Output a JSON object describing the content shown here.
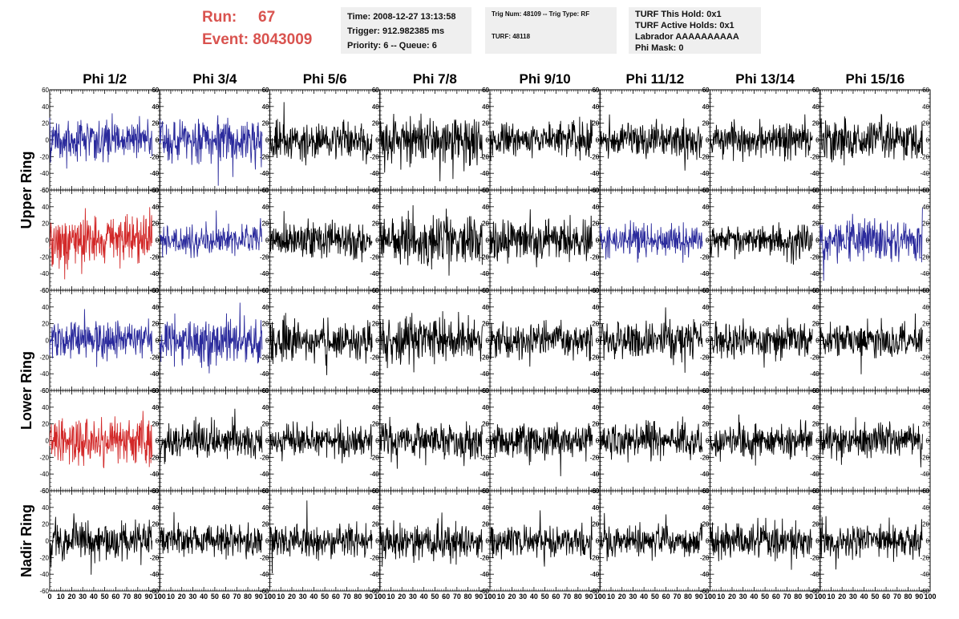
{
  "header": {
    "run_label": "Run:",
    "run_value": "67",
    "event_label": "Event:",
    "event_value": "8043009",
    "time": "Time: 2008-12-27 13:13:58",
    "trigger": "Trigger: 912.982385 ms",
    "priority": "Priority: 6 -- Queue: 6",
    "trig_num": "Trig Num: 48109 -- Trig Type: RF",
    "turf": "TURF: 48118",
    "turf_this_hold": "TURF This Hold: 0x1",
    "turf_active_holds": "TURF Active Holds: 0x1",
    "labrador": "Labrador AAAAAAAAAA",
    "phi_mask": "Phi Mask: 0"
  },
  "chart_data": {
    "type": "line",
    "columns": [
      "Phi 1/2",
      "Phi 3/4",
      "Phi 5/6",
      "Phi 7/8",
      "Phi 9/10",
      "Phi 11/12",
      "Phi 13/14",
      "Phi 15/16"
    ],
    "ring_labels": [
      {
        "text": "Upper Ring",
        "rows": [
          0,
          1
        ]
      },
      {
        "text": "Lower Ring",
        "rows": [
          2,
          3
        ]
      },
      {
        "text": "Nadir Ring",
        "rows": [
          4,
          4
        ]
      }
    ],
    "xlim": [
      0,
      100
    ],
    "ylim": [
      -60,
      60
    ],
    "y_ticks": [
      -60,
      -40,
      -20,
      0,
      20,
      40,
      60
    ],
    "x_ticks": [
      0,
      10,
      20,
      30,
      40,
      50,
      60,
      70,
      80,
      90,
      100
    ],
    "grid": false,
    "colors": {
      "triggered": "#d22828",
      "active": "#2a2a9c",
      "normal": "#000000"
    },
    "trace_colors": [
      [
        "active",
        "active",
        "normal",
        "normal",
        "normal",
        "normal",
        "normal",
        "normal"
      ],
      [
        "triggered",
        "active",
        "normal",
        "normal",
        "normal",
        "active",
        "normal",
        "active"
      ],
      [
        "active",
        "active",
        "normal",
        "normal",
        "normal",
        "normal",
        "normal",
        "normal"
      ],
      [
        "triggered",
        "normal",
        "normal",
        "normal",
        "normal",
        "normal",
        "normal",
        "normal"
      ],
      [
        "normal",
        "normal",
        "normal",
        "normal",
        "normal",
        "normal",
        "normal",
        "normal"
      ]
    ],
    "amplitude": [
      [
        15,
        16,
        14,
        17,
        13,
        12,
        13,
        15
      ],
      [
        19,
        11,
        13,
        17,
        15,
        12,
        11,
        14
      ],
      [
        14,
        17,
        14,
        17,
        12,
        14,
        13,
        12
      ],
      [
        18,
        13,
        12,
        14,
        13,
        13,
        12,
        13
      ],
      [
        15,
        11,
        12,
        13,
        12,
        12,
        13,
        12
      ]
    ]
  }
}
